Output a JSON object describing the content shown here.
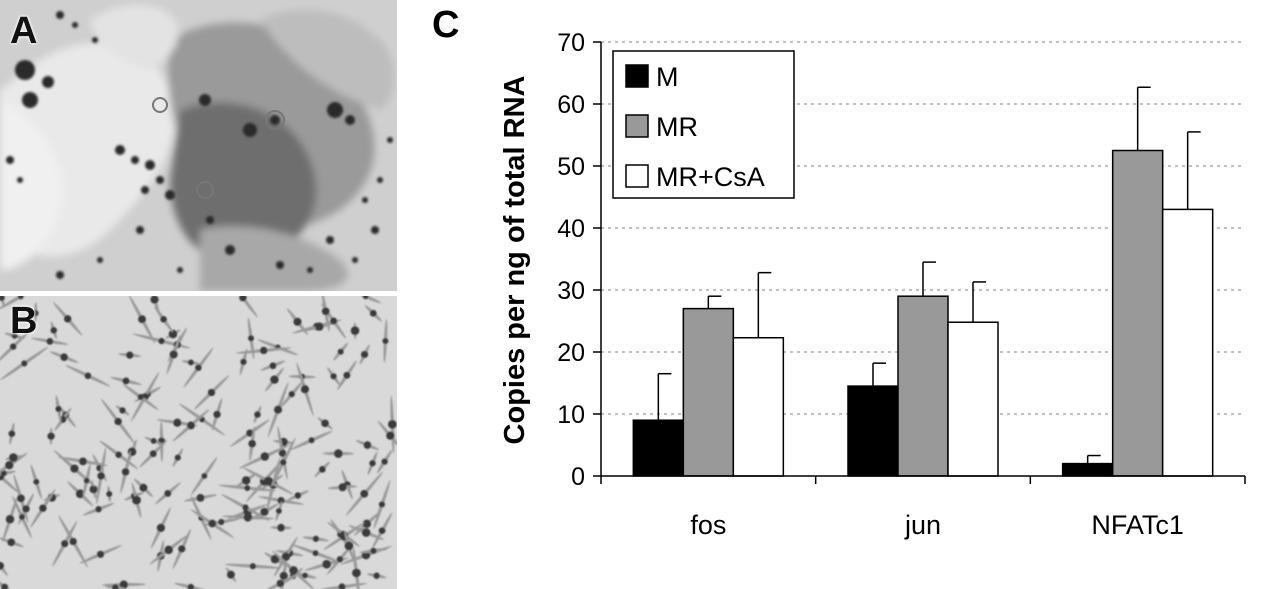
{
  "panels": {
    "a_label": "A",
    "b_label": "B",
    "c_label": "C"
  },
  "chart_data": {
    "type": "bar",
    "categories": [
      "fos",
      "jun",
      "NFATc1"
    ],
    "series": [
      {
        "name": "M",
        "color": "#000000",
        "values": [
          9,
          14.5,
          2
        ],
        "errors": [
          7.5,
          3.7,
          1.3
        ]
      },
      {
        "name": "MR",
        "color": "#999999",
        "values": [
          27,
          29,
          52.5
        ],
        "errors": [
          2,
          5.5,
          10.2
        ]
      },
      {
        "name": "MR+CsA",
        "color": "#ffffff",
        "values": [
          22.3,
          24.8,
          43
        ],
        "errors": [
          10.5,
          6.5,
          12.5
        ]
      }
    ],
    "xlabel": "",
    "ylabel": "Copies per ng of total RNA",
    "ylim": [
      0,
      70
    ],
    "yticks": [
      0,
      10,
      20,
      30,
      40,
      50,
      60,
      70
    ],
    "grid": "horizontal dashed",
    "legend": "top-left"
  }
}
